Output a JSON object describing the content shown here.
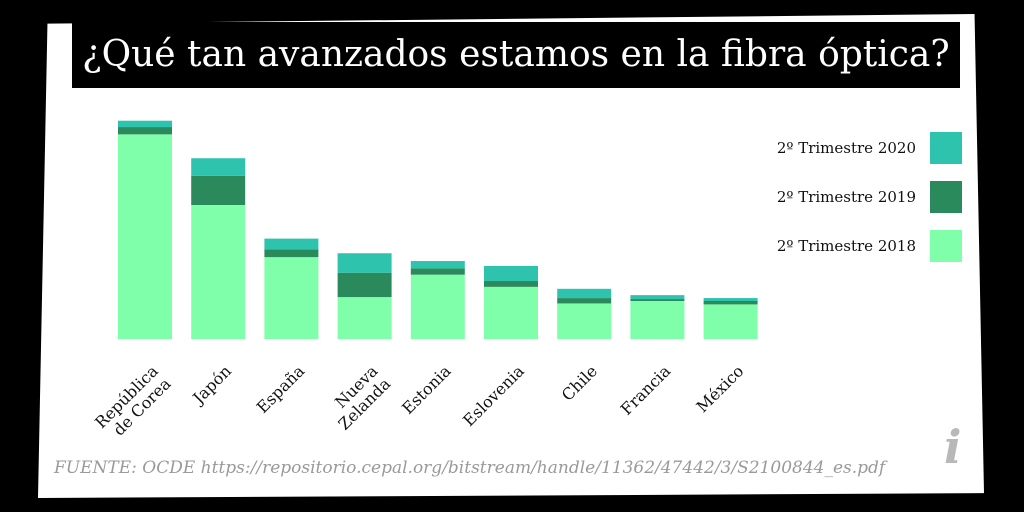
{
  "chart_data": {
    "type": "bar",
    "stacked": true,
    "title": "¿Qué tan avanzados estamos en la fibra óptica?",
    "xlabel": "",
    "ylabel": "",
    "ylim": [
      0,
      47
    ],
    "categories": [
      "República de Corea",
      "Japón",
      "España",
      "Nueva Zelanda",
      "Estonia",
      "Eslovenia",
      "Chile",
      "Francia",
      "México"
    ],
    "category_lines": [
      [
        "República",
        "de Corea"
      ],
      [
        "Japón"
      ],
      [
        "España"
      ],
      [
        "Nueva",
        "Zelanda"
      ],
      [
        "Estonia"
      ],
      [
        "Eslovenia"
      ],
      [
        "Chile"
      ],
      [
        "Francia"
      ],
      [
        "México"
      ]
    ],
    "series": [
      {
        "name": "2º Trimestre 2018",
        "color": "#80FFAA",
        "values": [
          42.0,
          27.5,
          16.8,
          8.6,
          13.2,
          10.7,
          7.3,
          7.8,
          7.1
        ]
      },
      {
        "name": "2º Trimestre 2019",
        "color": "#2B8A5C",
        "values": [
          1.5,
          6.0,
          1.6,
          5.0,
          1.3,
          1.2,
          1.1,
          0.4,
          0.7
        ]
      },
      {
        "name": "2º Trimestre 2020",
        "color": "#2DC3AC",
        "values": [
          1.3,
          3.6,
          2.2,
          4.0,
          1.5,
          3.1,
          1.9,
          0.8,
          0.6
        ]
      }
    ],
    "legend_position": "right"
  },
  "source_text": "FUENTE: OCDE https://repositorio.cepal.org/bitstream/handle/11362/47442/3/S2100844_es.pdf",
  "icons": {
    "info": "i"
  }
}
